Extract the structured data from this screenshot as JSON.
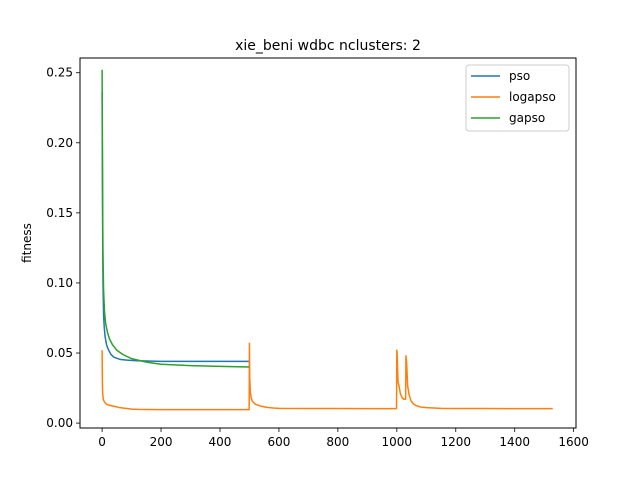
{
  "chart_data": {
    "type": "line",
    "title": "xie_beni wdbc nclusters: 2",
    "xlabel": "",
    "ylabel": "fitness",
    "xlim": [
      -75,
      1608
    ],
    "ylim": [
      -0.0035,
      0.2605
    ],
    "xticks": [
      0,
      200,
      400,
      600,
      800,
      1000,
      1200,
      1400,
      1600
    ],
    "yticks": [
      0.0,
      0.05,
      0.1,
      0.15,
      0.2,
      0.25
    ],
    "xtick_labels": [
      "0",
      "200",
      "400",
      "600",
      "800",
      "1000",
      "1200",
      "1400",
      "1600"
    ],
    "ytick_labels": [
      "0.00",
      "0.05",
      "0.10",
      "0.15",
      "0.20",
      "0.25"
    ],
    "grid": false,
    "legend_position": "top-right",
    "series": [
      {
        "name": "pso",
        "color": "#1f77b4",
        "x": [
          0,
          1,
          2,
          3,
          5,
          7,
          10,
          15,
          20,
          30,
          40,
          60,
          80,
          120,
          200,
          300,
          400,
          499
        ],
        "y": [
          0.236,
          0.18,
          0.13,
          0.1,
          0.078,
          0.069,
          0.062,
          0.056,
          0.053,
          0.049,
          0.047,
          0.0455,
          0.045,
          0.0445,
          0.044,
          0.044,
          0.044,
          0.044
        ]
      },
      {
        "name": "logapso",
        "color": "#ff7f0e",
        "x": [
          0,
          1,
          2,
          4,
          7,
          10,
          15,
          20,
          40,
          60,
          80,
          100,
          120,
          150,
          200,
          300,
          400,
          499,
          500,
          501,
          503,
          506,
          510,
          520,
          540,
          560,
          580,
          600,
          700,
          800,
          900,
          999,
          1000,
          1001,
          1004,
          1008,
          1012,
          1018,
          1024,
          1030,
          1031,
          1033,
          1037,
          1042,
          1048,
          1055,
          1065,
          1080,
          1100,
          1150,
          1200,
          1300,
          1400,
          1500,
          1529
        ],
        "y": [
          0.052,
          0.028,
          0.021,
          0.017,
          0.0155,
          0.0145,
          0.0135,
          0.013,
          0.012,
          0.011,
          0.0105,
          0.01,
          0.0098,
          0.0097,
          0.0096,
          0.0096,
          0.0096,
          0.0096,
          0.057,
          0.032,
          0.022,
          0.018,
          0.0155,
          0.0135,
          0.012,
          0.0112,
          0.0108,
          0.0105,
          0.0104,
          0.0104,
          0.0103,
          0.0103,
          0.052,
          0.05,
          0.03,
          0.026,
          0.021,
          0.018,
          0.017,
          0.017,
          0.048,
          0.044,
          0.026,
          0.02,
          0.016,
          0.014,
          0.0125,
          0.0115,
          0.011,
          0.0105,
          0.0104,
          0.0104,
          0.0103,
          0.0103,
          0.0103
        ]
      },
      {
        "name": "gapso",
        "color": "#2ca02c",
        "x": [
          0,
          1,
          2,
          3,
          5,
          8,
          12,
          18,
          25,
          35,
          50,
          70,
          100,
          150,
          200,
          300,
          400,
          499
        ],
        "y": [
          0.252,
          0.2,
          0.15,
          0.12,
          0.095,
          0.08,
          0.071,
          0.065,
          0.06,
          0.056,
          0.052,
          0.049,
          0.046,
          0.0435,
          0.042,
          0.041,
          0.0405,
          0.04
        ]
      }
    ]
  }
}
